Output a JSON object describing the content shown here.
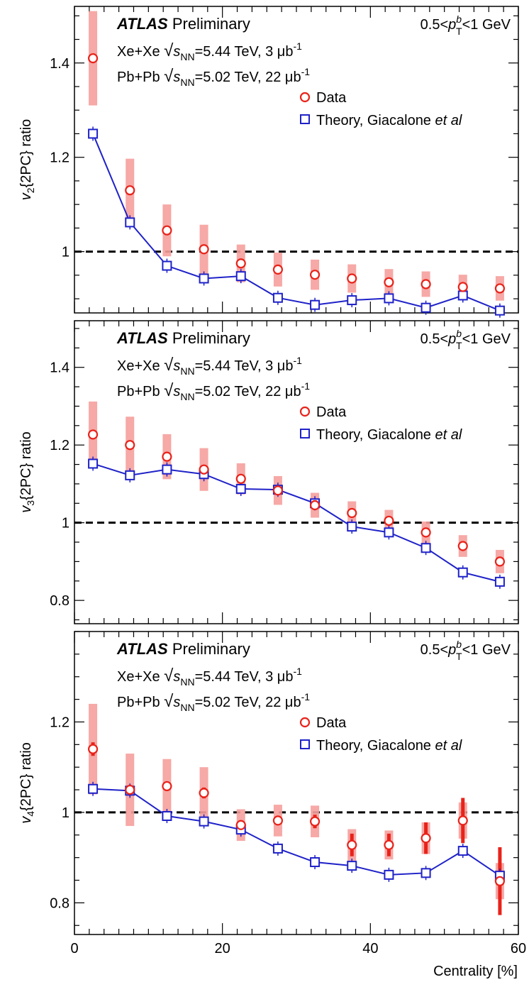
{
  "chart_data": [
    {
      "type": "scatter",
      "ylabel_prefix": "v",
      "ylabel_sub": "2",
      "ylabel_suffix": "{2PC} ratio",
      "ylim": [
        0.87,
        1.52
      ],
      "yticks": [
        1,
        1.2,
        1.4
      ],
      "ytick_labels": [
        "1",
        "1.2",
        "1.4"
      ],
      "reference_line": 1,
      "series": [
        {
          "name": "Data",
          "color": "#e8231a",
          "marker": "circle",
          "x": [
            2.5,
            7.5,
            12.5,
            17.5,
            22.5,
            27.5,
            32.5,
            37.5,
            42.5,
            47.5,
            52.5,
            57.5
          ],
          "y": [
            1.41,
            1.13,
            1.045,
            1.005,
            0.975,
            0.962,
            0.951,
            0.943,
            0.935,
            0.931,
            0.925,
            0.922
          ],
          "stat_err": [
            0.0,
            0.0,
            0.0,
            0.0,
            0.0,
            0.0,
            0.0,
            0.0,
            0.0,
            0.0,
            0.0,
            0.0
          ],
          "sys_err": [
            0.1,
            0.067,
            0.055,
            0.052,
            0.04,
            0.036,
            0.032,
            0.03,
            0.028,
            0.027,
            0.026,
            0.026
          ]
        },
        {
          "name": "Theory, Giacalone",
          "name_italic": "et al",
          "color": "#1f22c8",
          "marker": "square",
          "x": [
            2.5,
            7.5,
            12.5,
            17.5,
            22.5,
            27.5,
            32.5,
            37.5,
            42.5,
            47.5,
            52.5,
            57.5
          ],
          "y": [
            1.25,
            1.062,
            0.97,
            0.943,
            0.948,
            0.902,
            0.887,
            0.897,
            0.901,
            0.881,
            0.907,
            0.875
          ]
        }
      ]
    },
    {
      "type": "scatter",
      "ylabel_prefix": "v",
      "ylabel_sub": "3",
      "ylabel_suffix": "{2PC} ratio",
      "ylim": [
        0.74,
        1.52
      ],
      "yticks": [
        0.8,
        1,
        1.2,
        1.4
      ],
      "ytick_labels": [
        "0.8",
        "1",
        "1.2",
        "1.4"
      ],
      "reference_line": 1,
      "series": [
        {
          "name": "Data",
          "color": "#e8231a",
          "marker": "circle",
          "x": [
            2.5,
            7.5,
            12.5,
            17.5,
            22.5,
            27.5,
            32.5,
            37.5,
            42.5,
            47.5,
            52.5,
            57.5
          ],
          "y": [
            1.227,
            1.2,
            1.17,
            1.137,
            1.113,
            1.083,
            1.045,
            1.025,
            1.005,
            0.975,
            0.94,
            0.9
          ],
          "stat_err": [
            0.0,
            0.0,
            0.0,
            0.0,
            0.0,
            0.0,
            0.0,
            0.0,
            0.0,
            0.0,
            0.0,
            0.01
          ],
          "sys_err": [
            0.085,
            0.073,
            0.058,
            0.055,
            0.04,
            0.037,
            0.032,
            0.03,
            0.028,
            0.028,
            0.028,
            0.03
          ]
        },
        {
          "name": "Theory, Giacalone",
          "name_italic": "et al",
          "color": "#1f22c8",
          "marker": "square",
          "x": [
            2.5,
            7.5,
            12.5,
            17.5,
            22.5,
            27.5,
            32.5,
            37.5,
            42.5,
            47.5,
            52.5,
            57.5
          ],
          "y": [
            1.152,
            1.122,
            1.137,
            1.125,
            1.087,
            1.085,
            1.05,
            0.99,
            0.975,
            0.935,
            0.872,
            0.848
          ]
        }
      ]
    },
    {
      "type": "scatter",
      "ylabel_prefix": "v",
      "ylabel_sub": "4",
      "ylabel_suffix": "{2PC} ratio",
      "ylim": [
        0.73,
        1.4
      ],
      "yticks": [
        0.8,
        1,
        1.2
      ],
      "ytick_labels": [
        "0.8",
        "1",
        "1.2"
      ],
      "reference_line": 1,
      "series": [
        {
          "name": "Data",
          "color": "#e8231a",
          "marker": "circle",
          "x": [
            2.5,
            7.5,
            12.5,
            17.5,
            22.5,
            27.5,
            32.5,
            37.5,
            42.5,
            47.5,
            52.5,
            57.5
          ],
          "y": [
            1.14,
            1.05,
            1.058,
            1.043,
            0.972,
            0.982,
            0.98,
            0.928,
            0.928,
            0.943,
            0.982,
            0.848
          ],
          "stat_err": [
            0.015,
            0.01,
            0.01,
            0.012,
            0.01,
            0.01,
            0.015,
            0.025,
            0.025,
            0.035,
            0.05,
            0.075
          ],
          "sys_err": [
            0.1,
            0.08,
            0.06,
            0.057,
            0.035,
            0.035,
            0.035,
            0.035,
            0.032,
            0.035,
            0.04,
            0.04
          ]
        },
        {
          "name": "Theory, Giacalone",
          "name_italic": "et al",
          "color": "#1f22c8",
          "marker": "square",
          "x": [
            2.5,
            7.5,
            12.5,
            17.5,
            22.5,
            27.5,
            32.5,
            37.5,
            42.5,
            47.5,
            52.5,
            57.5
          ],
          "y": [
            1.052,
            1.048,
            0.992,
            0.98,
            0.962,
            0.92,
            0.89,
            0.882,
            0.862,
            0.866,
            0.915,
            0.86
          ]
        }
      ]
    }
  ],
  "x_axis": {
    "xlim": [
      0,
      60
    ],
    "ticks": [
      0,
      20,
      40,
      60
    ],
    "tick_labels": [
      "0",
      "20",
      "40",
      "60"
    ],
    "label": "Centrality [%]"
  },
  "labels": {
    "atlas": "ATLAS",
    "preliminary": "Preliminary",
    "pt_prefix": "0.5<",
    "pt_p": "p",
    "pt_sup": "b",
    "pt_sub": "T",
    "pt_suffix": "<1 GeV",
    "xexe_system": "Xe+Xe",
    "xexe_energy": "=5.44 TeV, 3 μb",
    "pbpb_system": "Pb+Pb",
    "pbpb_energy": "=5.02 TeV, 22 μb",
    "lumi_exp": "-1",
    "sqrt_s": "s",
    "sqrt_s_sub": "NN"
  }
}
